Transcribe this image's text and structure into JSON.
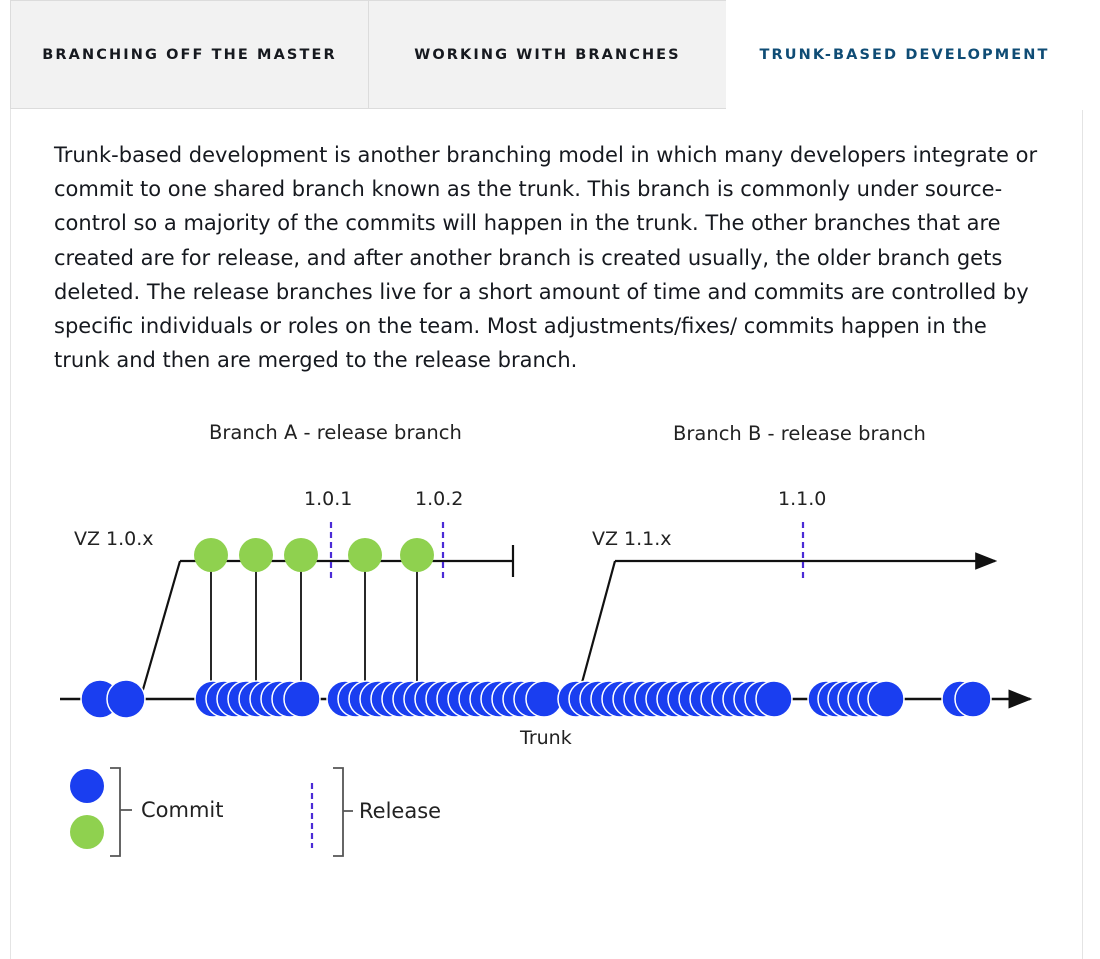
{
  "tabs": [
    {
      "label": "BRANCHING OFF THE MASTER",
      "active": false
    },
    {
      "label": "WORKING WITH BRANCHES",
      "active": false
    },
    {
      "label": "TRUNK-BASED DEVELOPMENT",
      "active": true
    }
  ],
  "content": {
    "paragraph": "Trunk-based development is another branching model in which many developers integrate or commit to one shared branch known as the trunk. This branch is commonly under source-control so a majority of the commits will happen in the trunk. The other branches that are created are for release, and after another branch is created usually, the older branch gets deleted. The release branches live for a short amount of time and commits are controlled by specific individuals or roles on the team. Most adjustments/fixes/ commits happen in the trunk and then are merged to the release branch."
  },
  "diagram": {
    "branch_a_label": "Branch A - release branch",
    "branch_b_label": "Branch B - release branch",
    "vz_a": "VZ 1.0.x",
    "vz_b": "VZ 1.1.x",
    "release_1": "1.0.1",
    "release_2": "1.0.2",
    "release_3": "1.1.0",
    "trunk_label": "Trunk",
    "legend_commit": "Commit",
    "legend_release": "Release"
  },
  "colors": {
    "accent": "#0f4c75",
    "commit_blue": "#1a3ef0",
    "commit_green": "#8fd14f",
    "release_dash": "#4b2bd6",
    "line": "#111111"
  }
}
